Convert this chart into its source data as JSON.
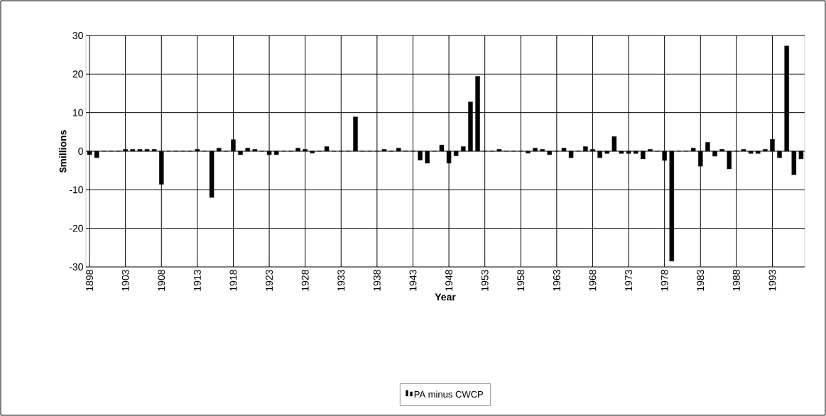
{
  "chart_data": {
    "type": "bar",
    "xlabel": "Year",
    "ylabel": "$millions",
    "x": [
      1898,
      1899,
      1900,
      1901,
      1902,
      1903,
      1904,
      1905,
      1906,
      1907,
      1908,
      1909,
      1910,
      1911,
      1912,
      1913,
      1914,
      1915,
      1916,
      1917,
      1918,
      1919,
      1920,
      1921,
      1922,
      1923,
      1924,
      1925,
      1926,
      1927,
      1928,
      1929,
      1930,
      1931,
      1932,
      1933,
      1934,
      1935,
      1936,
      1937,
      1938,
      1939,
      1940,
      1941,
      1942,
      1943,
      1944,
      1945,
      1946,
      1947,
      1948,
      1949,
      1950,
      1951,
      1952,
      1953,
      1954,
      1955,
      1956,
      1957,
      1958,
      1959,
      1960,
      1961,
      1962,
      1963,
      1964,
      1965,
      1966,
      1967,
      1968,
      1969,
      1970,
      1971,
      1972,
      1973,
      1974,
      1975,
      1976,
      1977,
      1978,
      1979,
      1980,
      1981,
      1982,
      1983,
      1984,
      1985,
      1986,
      1987,
      1988,
      1989,
      1990,
      1991,
      1992,
      1993,
      1994,
      1995,
      1996,
      1997
    ],
    "series": [
      {
        "name": "PA minus CWCP",
        "color": "#000000",
        "values": [
          -0.9,
          -1.7,
          0,
          0,
          0,
          0.5,
          0.5,
          0.5,
          0.5,
          0.5,
          -8.6,
          0,
          0,
          0,
          0,
          0.5,
          0,
          -12.0,
          0.8,
          0,
          3.0,
          -0.9,
          0.8,
          0.5,
          0,
          -0.9,
          -0.9,
          0,
          0,
          0.8,
          0.5,
          -0.5,
          0,
          1.2,
          0,
          0,
          0,
          8.9,
          0,
          0,
          0,
          0.5,
          0,
          0.8,
          0,
          0,
          -2.3,
          -3.1,
          0,
          1.6,
          -3.1,
          -1.2,
          1.2,
          12.8,
          19.4,
          0,
          0,
          0.5,
          0,
          0,
          0,
          -0.5,
          0.8,
          0.5,
          -0.9,
          0,
          0.8,
          -1.7,
          0,
          1.2,
          0.5,
          -1.7,
          -0.6,
          3.8,
          -0.6,
          -0.6,
          -0.6,
          -2.0,
          0.5,
          0,
          -2.4,
          -28.5,
          0,
          0,
          0.8,
          -3.9,
          2.3,
          -1.3,
          0.5,
          -4.6,
          0,
          0.5,
          -0.6,
          -0.6,
          0.5,
          3.1,
          -1.7,
          27.3,
          -6.1,
          -2.0
        ]
      }
    ],
    "xlim": [
      1897.5,
      1997.5
    ],
    "xticks": [
      1898,
      1903,
      1908,
      1913,
      1918,
      1923,
      1928,
      1933,
      1938,
      1943,
      1948,
      1953,
      1958,
      1963,
      1968,
      1973,
      1978,
      1983,
      1988,
      1993
    ],
    "ylim": [
      -30,
      30
    ],
    "yticks": [
      -30,
      -20,
      -10,
      0,
      10,
      20,
      30
    ],
    "grid": true,
    "legend": "bottom"
  }
}
